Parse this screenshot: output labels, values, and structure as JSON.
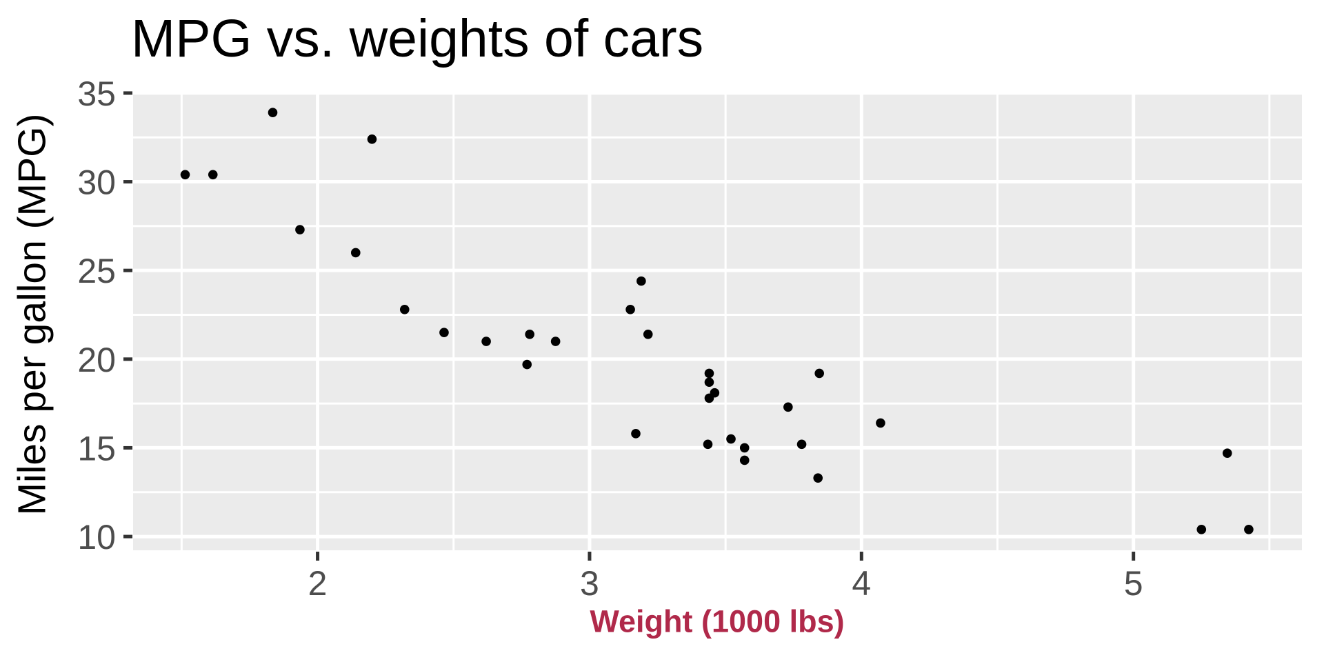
{
  "chart_data": {
    "type": "scatter",
    "title": "MPG vs. weights of cars",
    "xlabel": "Weight (1000 lbs)",
    "ylabel": "Miles per gallon (MPG)",
    "xlim": [
      1.3215,
      5.6195
    ],
    "ylim": [
      9.225,
      35.075
    ],
    "x_ticks": [
      2,
      3,
      4,
      5
    ],
    "y_ticks": [
      10,
      15,
      20,
      25,
      30,
      35
    ],
    "x_minor_ticks": [
      1.5,
      2.5,
      3.5,
      4.5,
      5.5
    ],
    "y_minor_ticks": [
      12.5,
      17.5,
      22.5,
      27.5,
      32.5
    ],
    "grid": "major and minor white gridlines on grey panel",
    "legend": "none",
    "series": [
      {
        "name": "cars",
        "points_format": "[weight_1000lbs, mpg]",
        "points": [
          [
            2.62,
            21.0
          ],
          [
            2.875,
            21.0
          ],
          [
            2.32,
            22.8
          ],
          [
            3.215,
            21.4
          ],
          [
            3.44,
            18.7
          ],
          [
            3.46,
            18.1
          ],
          [
            3.57,
            14.3
          ],
          [
            3.19,
            24.4
          ],
          [
            3.15,
            22.8
          ],
          [
            3.44,
            19.2
          ],
          [
            3.44,
            17.8
          ],
          [
            4.07,
            16.4
          ],
          [
            3.73,
            17.3
          ],
          [
            3.78,
            15.2
          ],
          [
            5.25,
            10.4
          ],
          [
            5.424,
            10.4
          ],
          [
            5.345,
            14.7
          ],
          [
            2.2,
            32.4
          ],
          [
            1.615,
            30.4
          ],
          [
            1.835,
            33.9
          ],
          [
            2.465,
            21.5
          ],
          [
            3.52,
            15.5
          ],
          [
            3.435,
            15.2
          ],
          [
            3.84,
            13.3
          ],
          [
            3.845,
            19.2
          ],
          [
            1.935,
            27.3
          ],
          [
            2.14,
            26.0
          ],
          [
            1.513,
            30.4
          ],
          [
            3.17,
            15.8
          ],
          [
            2.77,
            19.7
          ],
          [
            3.57,
            15.0
          ],
          [
            2.78,
            21.4
          ]
        ]
      }
    ],
    "colors": {
      "background": "#FFFFFF",
      "panel_bg": "#EBEBEB",
      "grid": "#FFFFFF",
      "point": "#000000",
      "tick_label": "#4D4D4D",
      "tick_mark": "#333333",
      "title": "#000000",
      "ylabel_color": "#000000",
      "xlabel_color": "#B0294A"
    }
  }
}
